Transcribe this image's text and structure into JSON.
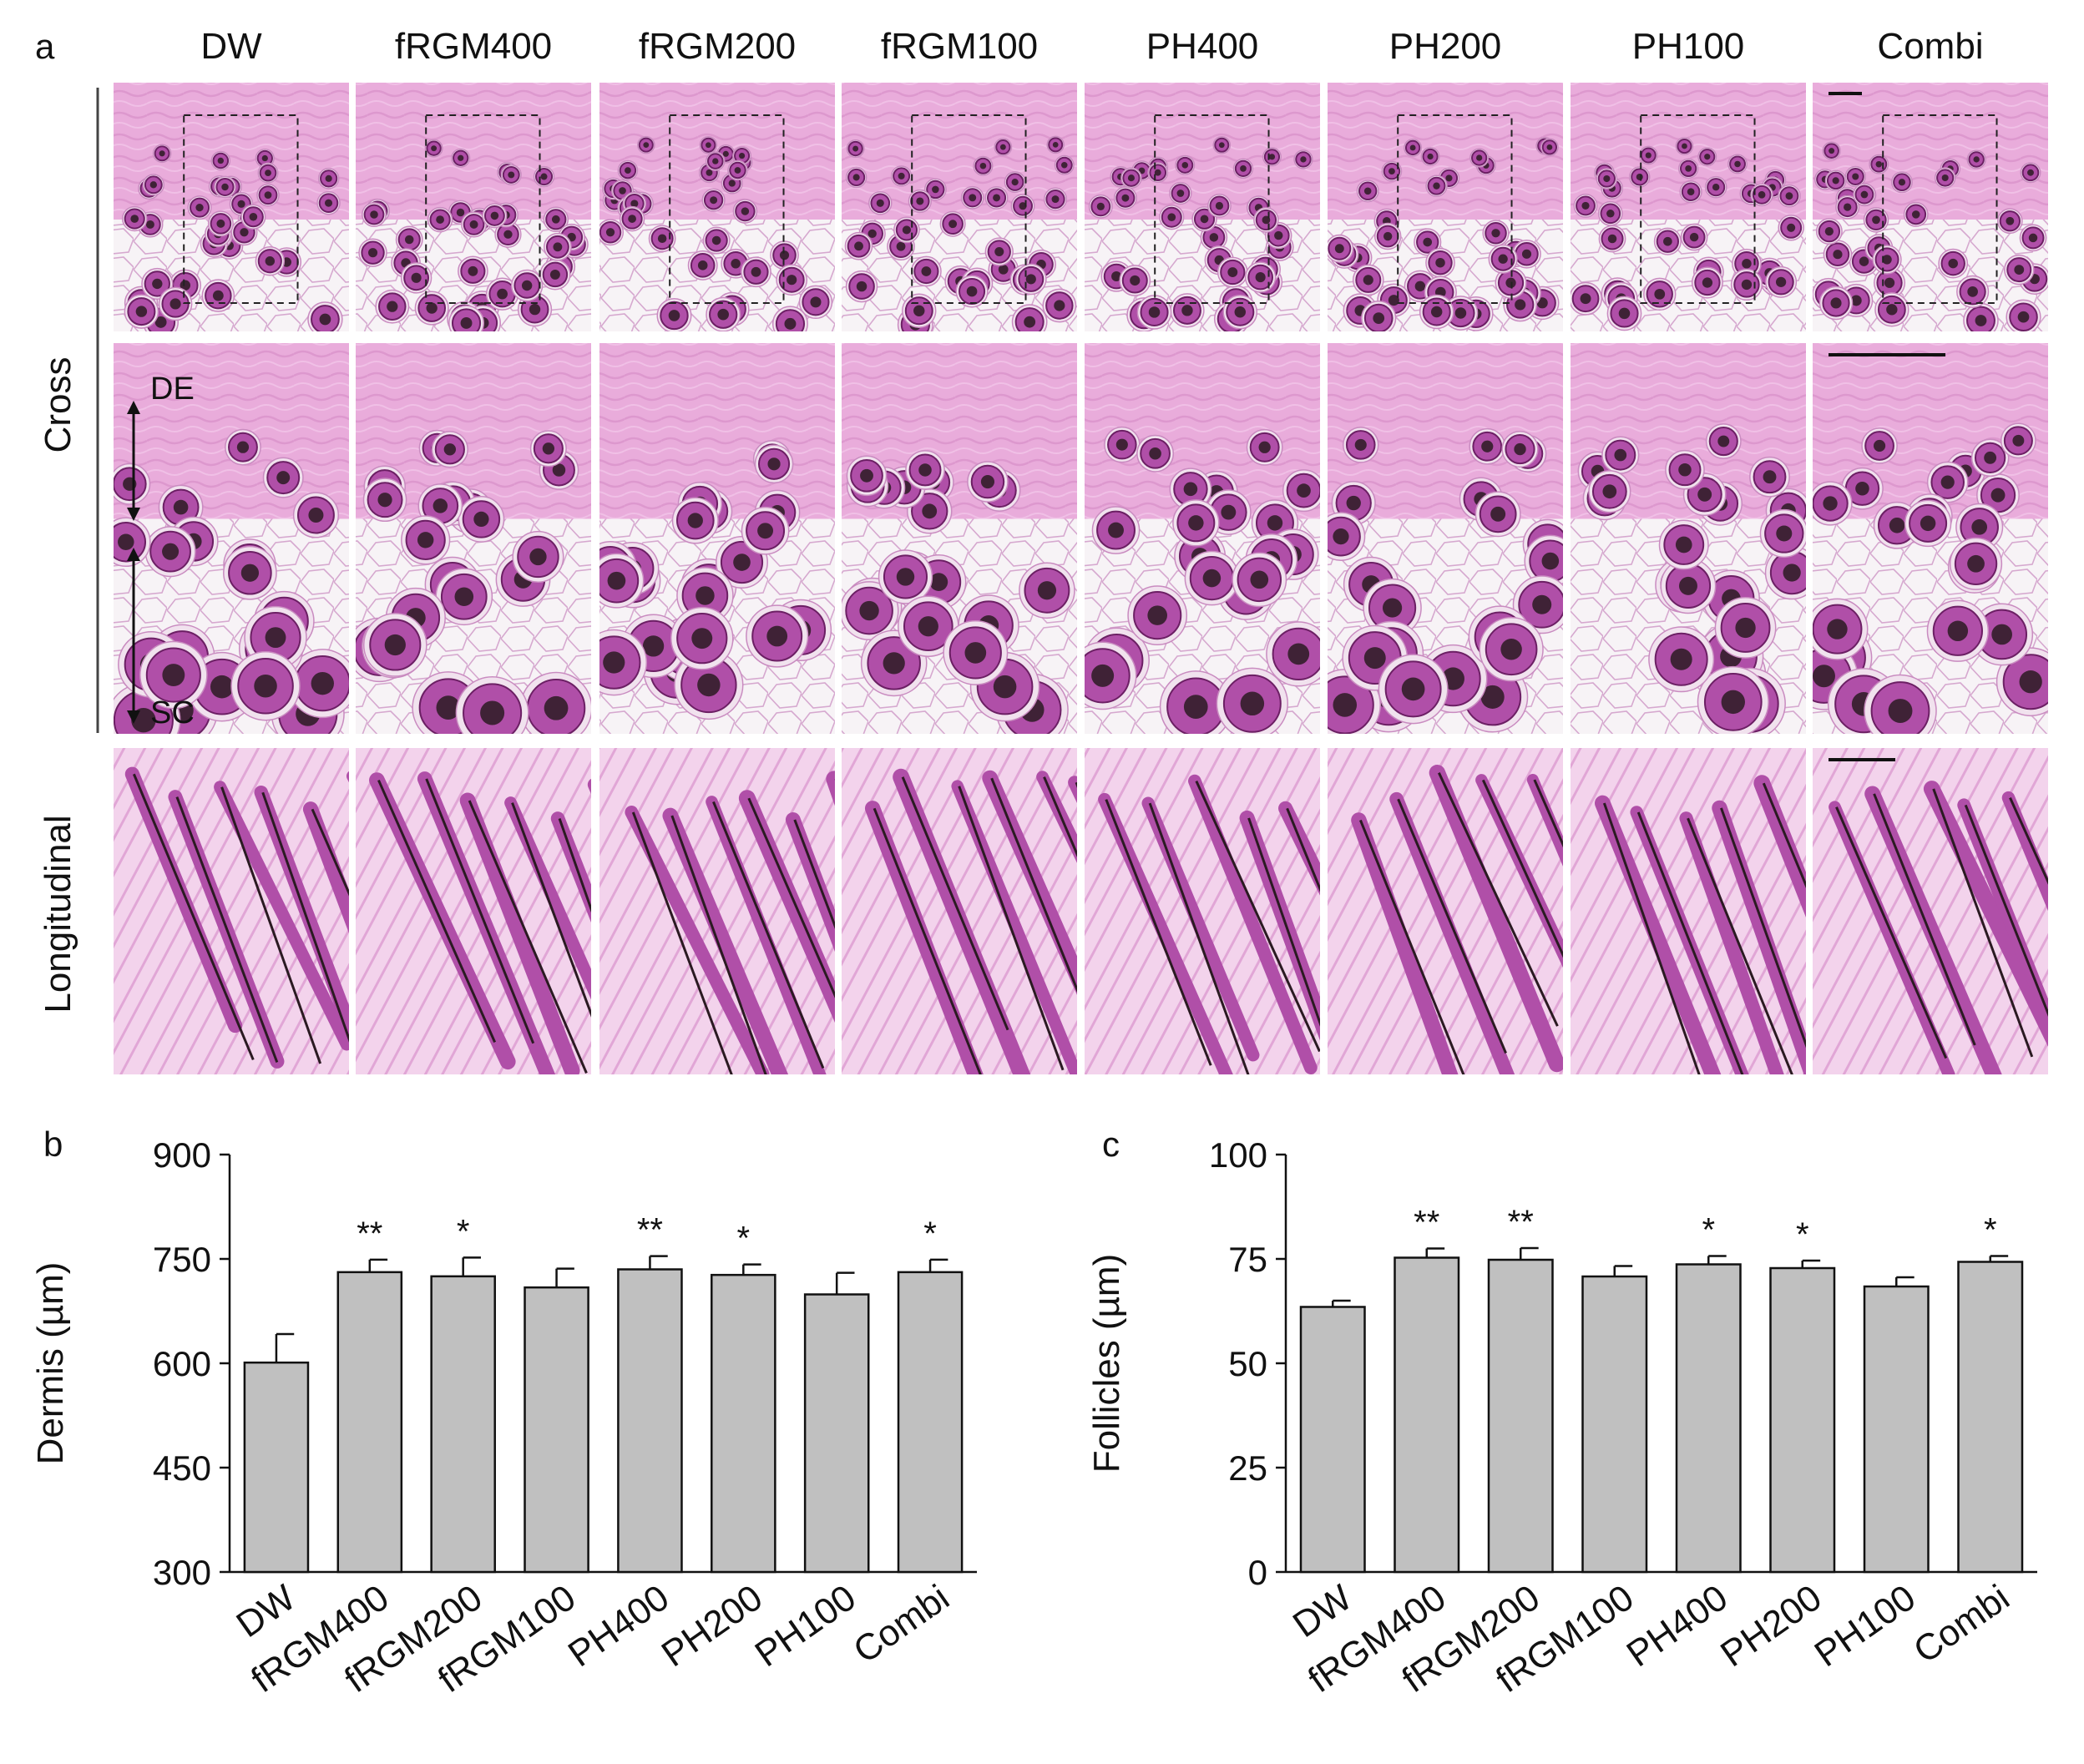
{
  "panel_labels": {
    "a": "a",
    "b": "b",
    "c": "c"
  },
  "groups": [
    "DW",
    "fRGM400",
    "fRGM200",
    "fRGM100",
    "PH400",
    "PH200",
    "PH100",
    "Combi"
  ],
  "row_labels": {
    "cross": "Cross",
    "longitudinal": "Longitudinal"
  },
  "annotations": {
    "dermis_end": "DE",
    "subcutis": "SC"
  },
  "colors": {
    "stain_background": "#ede3ee",
    "dermis_pink": "#e8a5d8",
    "follicle_purple": "#b04fa8",
    "follicle_dark": "#6c1f64",
    "pigment": "#2b1a22",
    "bar_fill": "#c0c0c0",
    "bar_stroke": "#111111"
  },
  "chart_data": [
    {
      "type": "bar",
      "panel": "b",
      "categories": [
        "DW",
        "fRGM400",
        "fRGM200",
        "fRGM100",
        "PH400",
        "PH200",
        "PH100",
        "Combi"
      ],
      "values": [
        601,
        731,
        725,
        709,
        735,
        727,
        699,
        731
      ],
      "errors": [
        41,
        18,
        27,
        27,
        19,
        15,
        31,
        18
      ],
      "significance": [
        "",
        "**",
        "*",
        "",
        "**",
        "*",
        "",
        "*"
      ],
      "ylabel": "Dermis (µm)",
      "ylim": [
        300,
        900
      ],
      "yticks": [
        300,
        450,
        600,
        750,
        900
      ],
      "grid": false
    },
    {
      "type": "bar",
      "panel": "c",
      "categories": [
        "DW",
        "fRGM400",
        "fRGM200",
        "fRGM100",
        "PH400",
        "PH200",
        "PH100",
        "Combi"
      ],
      "values": [
        63.5,
        75.3,
        74.8,
        70.8,
        73.7,
        72.8,
        68.4,
        74.3
      ],
      "errors": [
        1.5,
        2.2,
        2.8,
        2.5,
        2.0,
        1.8,
        2.2,
        1.4
      ],
      "significance": [
        "",
        "**",
        "**",
        "",
        "*",
        "*",
        "",
        "*"
      ],
      "ylabel": "Follicles (µm)",
      "ylim": [
        0,
        100
      ],
      "yticks": [
        0,
        25,
        50,
        75,
        100
      ],
      "grid": false
    }
  ]
}
